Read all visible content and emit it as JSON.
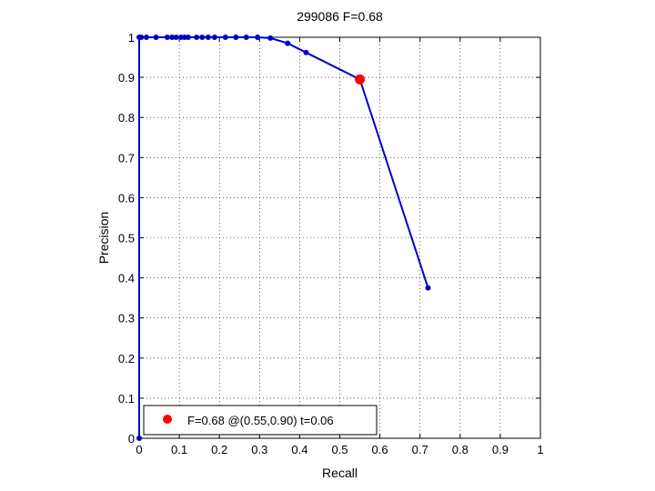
{
  "chart_data": {
    "type": "line",
    "title": "299086 F=0.68",
    "xlabel": "Recall",
    "ylabel": "Precision",
    "xlim": [
      0,
      1
    ],
    "ylim": [
      0,
      1
    ],
    "xticks": [
      "0",
      "0.1",
      "0.2",
      "0.3",
      "0.4",
      "0.5",
      "0.6",
      "0.7",
      "0.8",
      "0.9",
      "1"
    ],
    "yticks": [
      "0",
      "0.1",
      "0.2",
      "0.3",
      "0.4",
      "0.5",
      "0.6",
      "0.7",
      "0.8",
      "0.9",
      "1"
    ],
    "grid": true,
    "line_color": "#0000c8",
    "marker_color": "#ff0000",
    "series": [
      {
        "x": [
          0.0,
          0.0,
          0.005,
          0.018,
          0.042,
          0.07,
          0.082,
          0.092,
          0.104,
          0.113,
          0.122,
          0.143,
          0.157,
          0.172,
          0.188,
          0.215,
          0.241,
          0.267,
          0.295,
          0.327,
          0.37,
          0.416,
          0.55,
          0.72
        ],
        "y": [
          0.0,
          1.0,
          1.0,
          1.0,
          1.0,
          1.0,
          1.0,
          1.0,
          1.0,
          1.0,
          1.0,
          1.0,
          1.0,
          1.0,
          1.0,
          1.0,
          1.0,
          1.0,
          1.0,
          0.998,
          0.985,
          0.962,
          0.895,
          0.375
        ]
      }
    ],
    "best_point": {
      "x": 0.55,
      "y": 0.895
    },
    "legend": {
      "position": "bottom-left",
      "text": "F=0.68 @(0.55,0.90) t=0.06"
    }
  }
}
